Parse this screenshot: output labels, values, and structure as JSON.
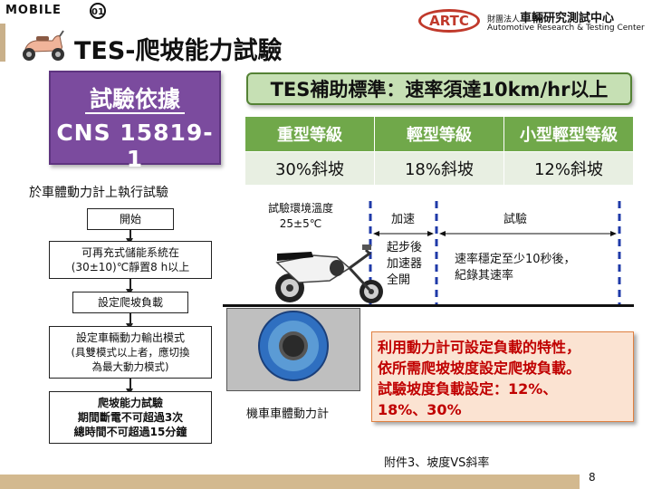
{
  "header": {
    "logo_text": "MOBILE",
    "artc_logo": "ARTC",
    "org_zh_prefix": "財團法人",
    "org_zh_name": "車輛研究測試中心",
    "org_en": "Automotive Research & Testing Center"
  },
  "title": "TES-爬坡能力試驗",
  "basis": {
    "title": "試驗依據",
    "standard": "CNS 15819-1"
  },
  "subsidy_standard": "TES補助標準：速率須達10km/hr以上",
  "grades": {
    "headers": [
      "重型等級",
      "輕型等級",
      "小型輕型等級"
    ],
    "values": [
      "30%斜坡",
      "18%斜坡",
      "12%斜坡"
    ]
  },
  "flow_caption": "於車體動力計上執行試驗",
  "flowchart": {
    "start": "開始",
    "step1_line1": "可再充式儲能系統在",
    "step1_line2": "(30±10)℃靜置8 h以上",
    "step2": "設定爬坡負載",
    "step3_line1": "設定車輛動力輸出模式",
    "step3_line2": "(具雙模式以上者，應切換",
    "step3_line3": "為最大動力模式)",
    "step4_line1": "爬坡能力試驗",
    "step4_line2": "期間斷電不可超過3次",
    "step4_line3": "總時間不可超過15分鐘"
  },
  "diagram": {
    "temp_label_line1": "試驗環境溫度",
    "temp_label_line2": "25±5℃",
    "accel_label": "加速",
    "test_label": "試驗",
    "accel_desc_line1": "起步後",
    "accel_desc_line2": "加速器",
    "accel_desc_line3": "全開",
    "test_desc_line1": "速率穩定至少10秒後，",
    "test_desc_line2": "紀錄其速率",
    "dyno_label": "機車車體動力計"
  },
  "note": {
    "line1": "利用動力計可設定負載的特性，",
    "line2": "依所需爬坡坡度設定爬坡負載。",
    "line3": "試驗坡度負載設定：12%、",
    "line4": "18%、30%"
  },
  "appendix": "附件3、坡度VS斜率",
  "page_number": "8",
  "colors": {
    "purple": "#7b4b9e",
    "green_header": "#70a84a",
    "green_box": "#c6e0b4",
    "orange_box": "#fbe3d2",
    "red_text": "#c00000",
    "artc_red": "#c0392b",
    "dashed_blue": "#1f3aa8"
  }
}
